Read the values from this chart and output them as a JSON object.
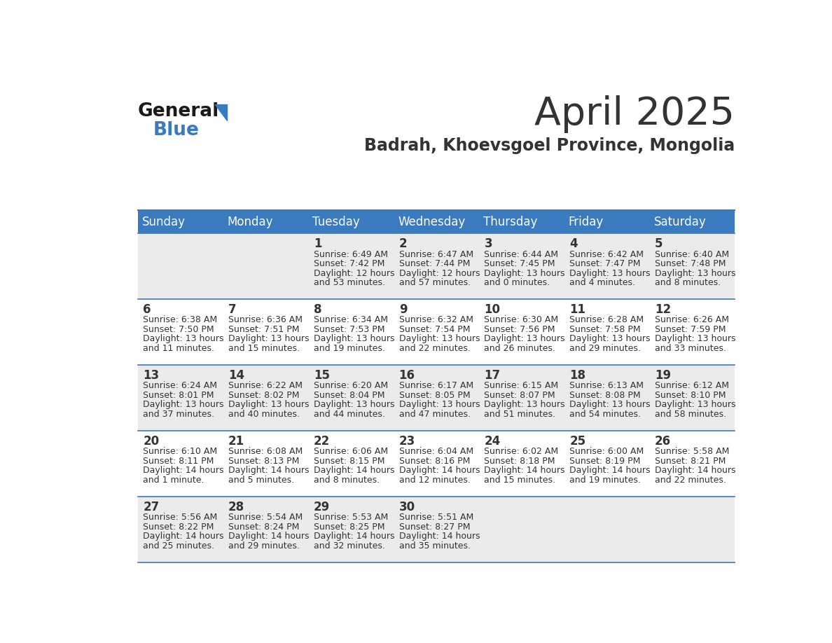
{
  "title": "April 2025",
  "subtitle": "Badrah, Khoevsgoel Province, Mongolia",
  "header_bg": "#3a7abf",
  "header_text": "#ffffff",
  "row_bg_odd": "#ebebeb",
  "row_bg_even": "#ffffff",
  "days_of_week": [
    "Sunday",
    "Monday",
    "Tuesday",
    "Wednesday",
    "Thursday",
    "Friday",
    "Saturday"
  ],
  "calendar_data": [
    [
      {
        "day": "",
        "sunrise": "",
        "sunset": "",
        "daylight": ""
      },
      {
        "day": "",
        "sunrise": "",
        "sunset": "",
        "daylight": ""
      },
      {
        "day": "1",
        "sunrise": "Sunrise: 6:49 AM",
        "sunset": "Sunset: 7:42 PM",
        "daylight": "Daylight: 12 hours\nand 53 minutes."
      },
      {
        "day": "2",
        "sunrise": "Sunrise: 6:47 AM",
        "sunset": "Sunset: 7:44 PM",
        "daylight": "Daylight: 12 hours\nand 57 minutes."
      },
      {
        "day": "3",
        "sunrise": "Sunrise: 6:44 AM",
        "sunset": "Sunset: 7:45 PM",
        "daylight": "Daylight: 13 hours\nand 0 minutes."
      },
      {
        "day": "4",
        "sunrise": "Sunrise: 6:42 AM",
        "sunset": "Sunset: 7:47 PM",
        "daylight": "Daylight: 13 hours\nand 4 minutes."
      },
      {
        "day": "5",
        "sunrise": "Sunrise: 6:40 AM",
        "sunset": "Sunset: 7:48 PM",
        "daylight": "Daylight: 13 hours\nand 8 minutes."
      }
    ],
    [
      {
        "day": "6",
        "sunrise": "Sunrise: 6:38 AM",
        "sunset": "Sunset: 7:50 PM",
        "daylight": "Daylight: 13 hours\nand 11 minutes."
      },
      {
        "day": "7",
        "sunrise": "Sunrise: 6:36 AM",
        "sunset": "Sunset: 7:51 PM",
        "daylight": "Daylight: 13 hours\nand 15 minutes."
      },
      {
        "day": "8",
        "sunrise": "Sunrise: 6:34 AM",
        "sunset": "Sunset: 7:53 PM",
        "daylight": "Daylight: 13 hours\nand 19 minutes."
      },
      {
        "day": "9",
        "sunrise": "Sunrise: 6:32 AM",
        "sunset": "Sunset: 7:54 PM",
        "daylight": "Daylight: 13 hours\nand 22 minutes."
      },
      {
        "day": "10",
        "sunrise": "Sunrise: 6:30 AM",
        "sunset": "Sunset: 7:56 PM",
        "daylight": "Daylight: 13 hours\nand 26 minutes."
      },
      {
        "day": "11",
        "sunrise": "Sunrise: 6:28 AM",
        "sunset": "Sunset: 7:58 PM",
        "daylight": "Daylight: 13 hours\nand 29 minutes."
      },
      {
        "day": "12",
        "sunrise": "Sunrise: 6:26 AM",
        "sunset": "Sunset: 7:59 PM",
        "daylight": "Daylight: 13 hours\nand 33 minutes."
      }
    ],
    [
      {
        "day": "13",
        "sunrise": "Sunrise: 6:24 AM",
        "sunset": "Sunset: 8:01 PM",
        "daylight": "Daylight: 13 hours\nand 37 minutes."
      },
      {
        "day": "14",
        "sunrise": "Sunrise: 6:22 AM",
        "sunset": "Sunset: 8:02 PM",
        "daylight": "Daylight: 13 hours\nand 40 minutes."
      },
      {
        "day": "15",
        "sunrise": "Sunrise: 6:20 AM",
        "sunset": "Sunset: 8:04 PM",
        "daylight": "Daylight: 13 hours\nand 44 minutes."
      },
      {
        "day": "16",
        "sunrise": "Sunrise: 6:17 AM",
        "sunset": "Sunset: 8:05 PM",
        "daylight": "Daylight: 13 hours\nand 47 minutes."
      },
      {
        "day": "17",
        "sunrise": "Sunrise: 6:15 AM",
        "sunset": "Sunset: 8:07 PM",
        "daylight": "Daylight: 13 hours\nand 51 minutes."
      },
      {
        "day": "18",
        "sunrise": "Sunrise: 6:13 AM",
        "sunset": "Sunset: 8:08 PM",
        "daylight": "Daylight: 13 hours\nand 54 minutes."
      },
      {
        "day": "19",
        "sunrise": "Sunrise: 6:12 AM",
        "sunset": "Sunset: 8:10 PM",
        "daylight": "Daylight: 13 hours\nand 58 minutes."
      }
    ],
    [
      {
        "day": "20",
        "sunrise": "Sunrise: 6:10 AM",
        "sunset": "Sunset: 8:11 PM",
        "daylight": "Daylight: 14 hours\nand 1 minute."
      },
      {
        "day": "21",
        "sunrise": "Sunrise: 6:08 AM",
        "sunset": "Sunset: 8:13 PM",
        "daylight": "Daylight: 14 hours\nand 5 minutes."
      },
      {
        "day": "22",
        "sunrise": "Sunrise: 6:06 AM",
        "sunset": "Sunset: 8:15 PM",
        "daylight": "Daylight: 14 hours\nand 8 minutes."
      },
      {
        "day": "23",
        "sunrise": "Sunrise: 6:04 AM",
        "sunset": "Sunset: 8:16 PM",
        "daylight": "Daylight: 14 hours\nand 12 minutes."
      },
      {
        "day": "24",
        "sunrise": "Sunrise: 6:02 AM",
        "sunset": "Sunset: 8:18 PM",
        "daylight": "Daylight: 14 hours\nand 15 minutes."
      },
      {
        "day": "25",
        "sunrise": "Sunrise: 6:00 AM",
        "sunset": "Sunset: 8:19 PM",
        "daylight": "Daylight: 14 hours\nand 19 minutes."
      },
      {
        "day": "26",
        "sunrise": "Sunrise: 5:58 AM",
        "sunset": "Sunset: 8:21 PM",
        "daylight": "Daylight: 14 hours\nand 22 minutes."
      }
    ],
    [
      {
        "day": "27",
        "sunrise": "Sunrise: 5:56 AM",
        "sunset": "Sunset: 8:22 PM",
        "daylight": "Daylight: 14 hours\nand 25 minutes."
      },
      {
        "day": "28",
        "sunrise": "Sunrise: 5:54 AM",
        "sunset": "Sunset: 8:24 PM",
        "daylight": "Daylight: 14 hours\nand 29 minutes."
      },
      {
        "day": "29",
        "sunrise": "Sunrise: 5:53 AM",
        "sunset": "Sunset: 8:25 PM",
        "daylight": "Daylight: 14 hours\nand 32 minutes."
      },
      {
        "day": "30",
        "sunrise": "Sunrise: 5:51 AM",
        "sunset": "Sunset: 8:27 PM",
        "daylight": "Daylight: 14 hours\nand 35 minutes."
      },
      {
        "day": "",
        "sunrise": "",
        "sunset": "",
        "daylight": ""
      },
      {
        "day": "",
        "sunrise": "",
        "sunset": "",
        "daylight": ""
      },
      {
        "day": "",
        "sunrise": "",
        "sunset": "",
        "daylight": ""
      }
    ]
  ],
  "logo_general_color": "#1a1a1a",
  "logo_blue_color": "#3a7abf",
  "cell_text_color": "#333333",
  "border_color": "#3a7abf",
  "bg_color": "#ffffff",
  "title_fontsize": 40,
  "subtitle_fontsize": 17,
  "day_num_fontsize": 12,
  "cell_text_fontsize": 9,
  "header_fontsize": 12
}
